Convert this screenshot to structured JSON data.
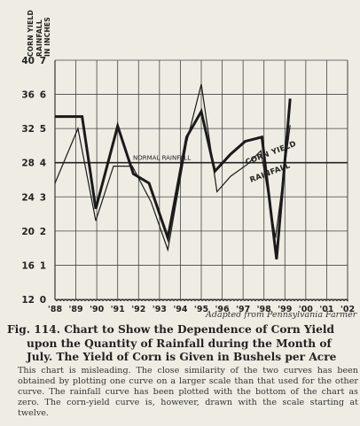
{
  "axis_header": {
    "left": "CORN YIELD",
    "right_1": "RAINFALL",
    "right_2": "IN INCHES"
  },
  "chart_data": {
    "type": "line",
    "x": [
      "'88",
      "'89",
      "'90",
      "'91",
      "'92",
      "'93",
      "'94",
      "'95",
      "'96",
      "'97",
      "'98",
      "'99",
      "'00",
      "'01",
      "'02"
    ],
    "y_left_ticks": [
      40,
      36,
      32,
      28,
      24,
      20,
      16,
      12
    ],
    "y_right_ticks": [
      7,
      6,
      5,
      4,
      3,
      2,
      1,
      0
    ],
    "ylim_left": [
      12,
      40
    ],
    "ylim_right": [
      0,
      7
    ],
    "series": [
      {
        "name": "CORN YIELD",
        "axis": "left",
        "points": [
          [
            0,
            33.4
          ],
          [
            1.3,
            33.4
          ],
          [
            1.95,
            22.6
          ],
          [
            3.0,
            32.3
          ],
          [
            3.75,
            26.7
          ],
          [
            4.5,
            25.6
          ],
          [
            5.4,
            19.2
          ],
          [
            6.3,
            31.0
          ],
          [
            7.0,
            34.0
          ],
          [
            7.65,
            27.0
          ],
          [
            8.4,
            29.0
          ],
          [
            9.1,
            30.5
          ],
          [
            9.9,
            31.0
          ],
          [
            10.6,
            16.7
          ],
          [
            11.25,
            35.5
          ]
        ]
      },
      {
        "name": "RAINFALL",
        "axis": "right",
        "points": [
          [
            0,
            3.4
          ],
          [
            1.1,
            5.0
          ],
          [
            1.95,
            2.3
          ],
          [
            2.8,
            3.9
          ],
          [
            3.7,
            3.9
          ],
          [
            4.6,
            2.85
          ],
          [
            5.4,
            1.45
          ],
          [
            6.3,
            4.6
          ],
          [
            7.0,
            6.3
          ],
          [
            7.75,
            3.15
          ],
          [
            8.4,
            3.6
          ],
          [
            9.2,
            3.95
          ],
          [
            9.85,
            4.35
          ],
          [
            10.55,
            1.8
          ],
          [
            11.25,
            5.1
          ]
        ]
      }
    ],
    "reference_line": {
      "label": "NORMAL RAINFALL",
      "value_right": 4
    },
    "annotations": [
      "CORN YIELD",
      "RAINFALL"
    ]
  },
  "source": "Adapted from Pennsylvania Farmer",
  "caption": {
    "fig": "Fig. 114.",
    "title": "Chart to Show the Dependence of Corn Yield",
    "rest": "upon the Quantity of Rainfall during the Month of July. The Yield of Corn is Given in Bushels per Acre"
  },
  "body": "This chart is misleading. The close similarity of the two curves has been obtained by plotting one curve on a larger scale than that used for the other curve. The rainfall curve has been plotted with the bottom of the chart as zero. The corn-yield curve is, however, drawn with the scale starting at twelve."
}
